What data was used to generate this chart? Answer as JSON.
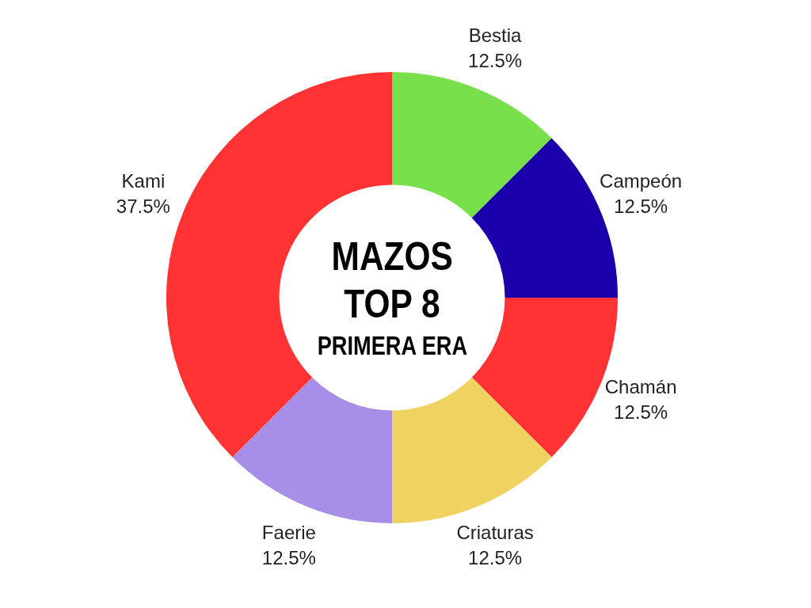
{
  "chart_data": {
    "type": "donut",
    "title": "MAZOS TOP 8",
    "subtitle": "PRIMERA ERA",
    "categories": [
      "Bestia",
      "Campeón",
      "Chamán",
      "Criaturas",
      "Faerie",
      "Kami"
    ],
    "values": [
      12.5,
      12.5,
      12.5,
      12.5,
      12.5,
      37.5
    ],
    "colors": [
      "#77e04a",
      "#1a00aa",
      "#ff3333",
      "#f0d260",
      "#a78fe8",
      "#ff3333"
    ],
    "value_labels": [
      "12.5%",
      "12.5%",
      "12.5%",
      "12.5%",
      "12.5%",
      "37.5%"
    ],
    "legend": false
  }
}
